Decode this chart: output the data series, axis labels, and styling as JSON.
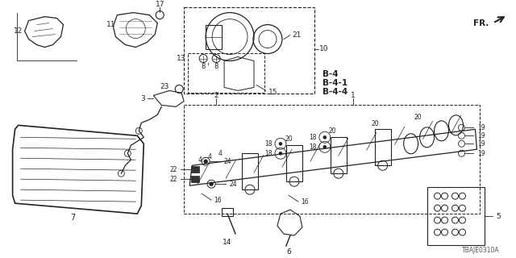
{
  "bg_color": "#ffffff",
  "line_color": "#222222",
  "diagram_code": "TBAJE0310A",
  "figsize": [
    6.4,
    3.2
  ],
  "dpi": 100
}
